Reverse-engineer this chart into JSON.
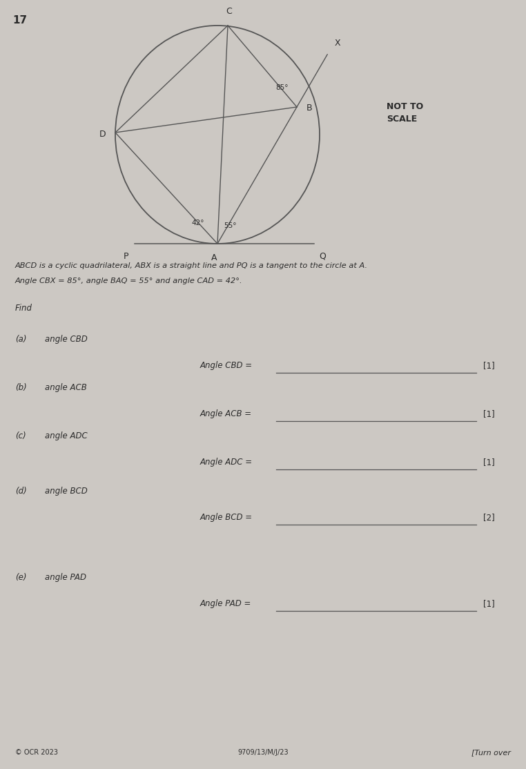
{
  "page_number": "17",
  "background_color": "#ccc8c3",
  "not_to_scale": "NOT TO\nSCALE",
  "angle_CBX": "85°",
  "angle_BAQ": "55°",
  "angle_CAD": "42°",
  "description_line1": "ABCD is a cyclic quadrilateral, ABX is a straight line and PQ is a tangent to the circle at A.",
  "description_line2": "Angle CBX = 85°, angle BAQ = 55° and angle CAD = 42°.",
  "find_text": "Find",
  "parts": [
    {
      "label": "(a)",
      "question": "angle CBD",
      "answer_label": "Angle CBD =",
      "marks": "[1]"
    },
    {
      "label": "(b)",
      "question": "angle ACB",
      "answer_label": "Angle ACB =",
      "marks": "[1]"
    },
    {
      "label": "(c)",
      "question": "angle ADC",
      "answer_label": "Angle ADC =",
      "marks": "[1]"
    },
    {
      "label": "(d)",
      "question": "angle BCD",
      "answer_label": "Angle BCD =",
      "marks": "[2]"
    },
    {
      "label": "(e)",
      "question": "angle PAD",
      "answer_label": "Angle PAD =",
      "marks": "[1]"
    }
  ],
  "footer_left": "© OCR 2023",
  "footer_center": "9709/13/M/J/23",
  "footer_right": "[Turn over",
  "line_color": "#555555",
  "text_color": "#2a2a2a"
}
